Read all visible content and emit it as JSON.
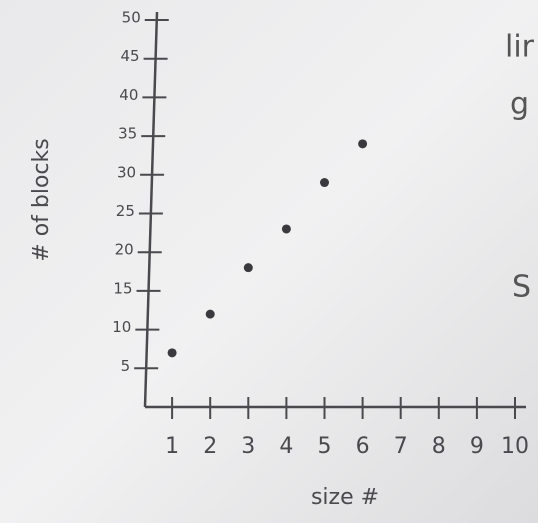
{
  "chart_data": {
    "type": "scatter",
    "x_label": "size #",
    "y_label": "# of blocks",
    "x": [
      1,
      2,
      3,
      4,
      5,
      6
    ],
    "values": [
      7,
      12,
      18,
      23,
      29,
      34
    ],
    "color": "#3a3a3e",
    "xlim": [
      0,
      10
    ],
    "xticks": [
      1,
      2,
      3,
      4,
      5,
      6,
      7,
      8,
      9,
      10
    ],
    "ylim": [
      0,
      50
    ],
    "yticks": [
      5,
      10,
      15,
      20,
      25,
      30,
      35,
      40,
      45,
      50
    ],
    "margin_notes": [
      "lir",
      "g",
      "S"
    ]
  }
}
